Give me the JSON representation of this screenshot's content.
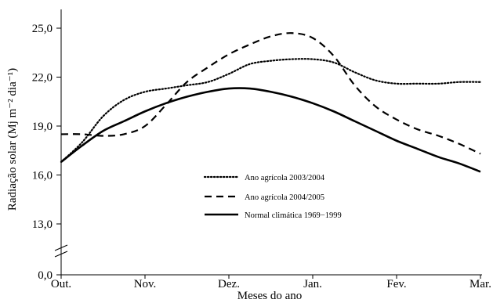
{
  "chart_data": {
    "type": "line",
    "title": "",
    "xlabel": "Meses do ano",
    "ylabel": "Radiação solar (Mj m⁻² dia⁻¹)",
    "x_tick_labels": [
      "Out.",
      "Nov.",
      "Dez.",
      "Jan.",
      "Fev.",
      "Mar."
    ],
    "y_tick_labels": [
      "0,0",
      "13,0",
      "16,0",
      "19,0",
      "22,0",
      "25,0"
    ],
    "ylim": [
      13.0,
      25.0
    ],
    "y_axis_break": true,
    "grid": false,
    "legend_position": "center",
    "series": [
      {
        "name": "Ano agrícola 2003/2004",
        "style": "dotted",
        "x": [
          0,
          0.25,
          0.5,
          0.75,
          1,
          1.25,
          1.5,
          1.75,
          2,
          2.25,
          2.5,
          2.75,
          3,
          3.25,
          3.5,
          3.75,
          4,
          4.25,
          4.5,
          4.75,
          5
        ],
        "values": [
          16.8,
          18.0,
          19.6,
          20.6,
          21.1,
          21.3,
          21.5,
          21.7,
          22.2,
          22.8,
          23.0,
          23.1,
          23.1,
          22.9,
          22.3,
          21.8,
          21.6,
          21.6,
          21.6,
          21.7,
          21.7
        ]
      },
      {
        "name": "Ano agrícola 2004/2005",
        "style": "dashed",
        "x": [
          0,
          0.25,
          0.5,
          0.75,
          1,
          1.25,
          1.5,
          1.75,
          2,
          2.25,
          2.5,
          2.75,
          3,
          3.25,
          3.5,
          3.75,
          4,
          4.25,
          4.5,
          4.75,
          5
        ],
        "values": [
          18.5,
          18.5,
          18.4,
          18.5,
          19.0,
          20.3,
          21.7,
          22.6,
          23.4,
          24.0,
          24.5,
          24.7,
          24.4,
          23.3,
          21.5,
          20.2,
          19.4,
          18.8,
          18.4,
          17.9,
          17.3
        ]
      },
      {
        "name": "Normal climática 1969−1999",
        "style": "solid",
        "x": [
          0,
          0.25,
          0.5,
          0.75,
          1,
          1.25,
          1.5,
          1.75,
          2,
          2.25,
          2.5,
          2.75,
          3,
          3.25,
          3.5,
          3.75,
          4,
          4.25,
          4.5,
          4.75,
          5
        ],
        "values": [
          16.8,
          17.8,
          18.7,
          19.3,
          19.9,
          20.4,
          20.8,
          21.1,
          21.3,
          21.3,
          21.1,
          20.8,
          20.4,
          19.9,
          19.3,
          18.7,
          18.1,
          17.6,
          17.1,
          16.7,
          16.2
        ]
      }
    ]
  }
}
